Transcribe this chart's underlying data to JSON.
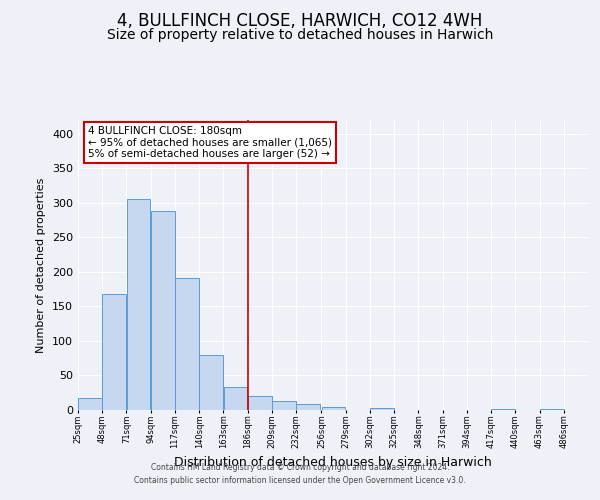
{
  "title": "4, BULLFINCH CLOSE, HARWICH, CO12 4WH",
  "subtitle": "Size of property relative to detached houses in Harwich",
  "xlabel": "Distribution of detached houses by size in Harwich",
  "ylabel": "Number of detached properties",
  "bar_left_edges": [
    25,
    48,
    71,
    94,
    117,
    140,
    163,
    186,
    209,
    232,
    256,
    279,
    302,
    325,
    348,
    371,
    394,
    417,
    440,
    463
  ],
  "bar_heights": [
    17,
    168,
    305,
    288,
    191,
    80,
    33,
    20,
    13,
    8,
    5,
    0,
    3,
    0,
    0,
    0,
    0,
    2,
    0,
    2
  ],
  "bin_width": 23,
  "tick_labels": [
    "25sqm",
    "48sqm",
    "71sqm",
    "94sqm",
    "117sqm",
    "140sqm",
    "163sqm",
    "186sqm",
    "209sqm",
    "232sqm",
    "256sqm",
    "279sqm",
    "302sqm",
    "325sqm",
    "348sqm",
    "371sqm",
    "394sqm",
    "417sqm",
    "440sqm",
    "463sqm",
    "486sqm"
  ],
  "bar_color": "#c5d8f0",
  "bar_edge_color": "#5b9bd5",
  "vline_x": 186,
  "vline_color": "#cc0000",
  "ylim": [
    0,
    420
  ],
  "yticks": [
    0,
    50,
    100,
    150,
    200,
    250,
    300,
    350,
    400
  ],
  "annotation_title": "4 BULLFINCH CLOSE: 180sqm",
  "annotation_line1": "← 95% of detached houses are smaller (1,065)",
  "annotation_line2": "5% of semi-detached houses are larger (52) →",
  "annotation_box_color": "#cc0000",
  "footnote1": "Contains HM Land Registry data © Crown copyright and database right 2024.",
  "footnote2": "Contains public sector information licensed under the Open Government Licence v3.0.",
  "background_color": "#eef2f8",
  "grid_color": "#ffffff",
  "title_fontsize": 12,
  "subtitle_fontsize": 10
}
